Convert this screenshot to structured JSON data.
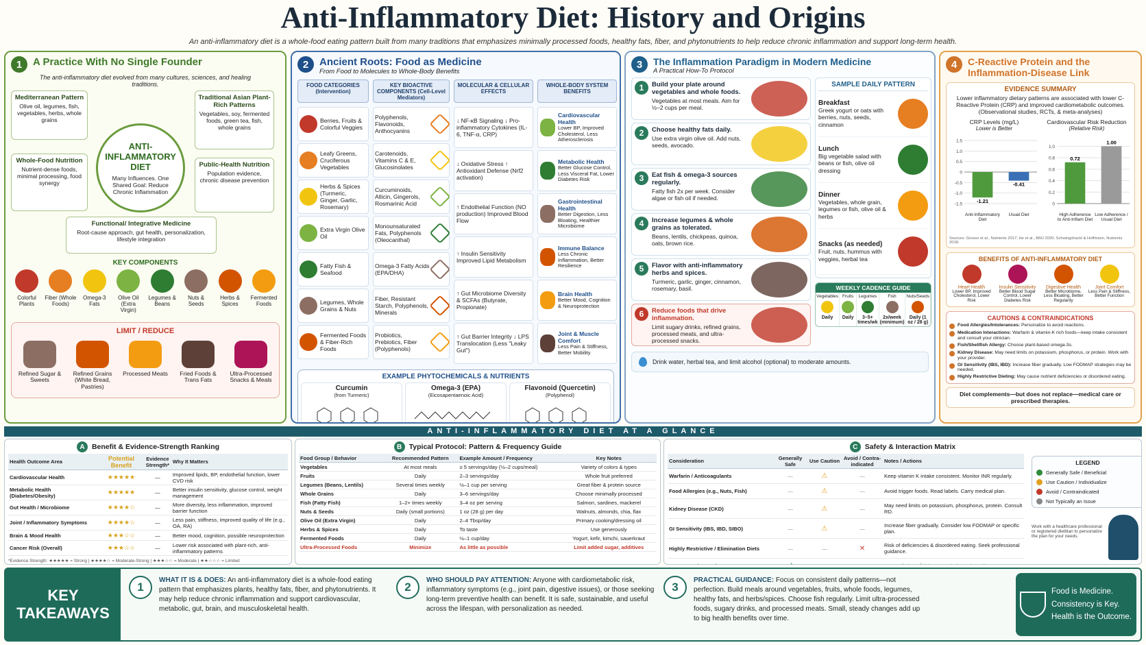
{
  "header": {
    "title": "Anti-Inflammatory Diet: History and Origins",
    "subtitle": "An anti-inflammatory diet is a whole-food eating pattern built from many traditions that emphasizes minimally processed foods, healthy fats, fiber, and phytonutrients to help reduce chronic inflammation and support long-term health."
  },
  "panel1": {
    "number": "1",
    "title": "A Practice With No Single Founder",
    "intro": "The anti-inflammatory diet evolved from many cultures, sciences, and healing traditions.",
    "center": {
      "label": "ANTI-INFLAMMATORY DIET",
      "text": "Many Influences. One Shared Goal: Reduce Chronic Inflammation"
    },
    "origins": [
      {
        "title": "Mediterranean Pattern",
        "text": "Olive oil, legumes, fish, vegetables, herbs, whole grains"
      },
      {
        "title": "Traditional Asian Plant-Rich Patterns",
        "text": "Vegetables, soy, fermented foods, green tea, fish, whole grains"
      },
      {
        "title": "Whole-Food Nutrition",
        "text": "Nutrient-dense foods, minimal processing, food synergy"
      },
      {
        "title": "Public-Health Nutrition",
        "text": "Population evidence, chronic disease prevention"
      },
      {
        "title": "Functional/ Integrative Medicine",
        "text": "Root-cause approach, gut health, personalization, lifestyle integration"
      }
    ],
    "key_components": {
      "title": "KEY COMPONENTS",
      "items": [
        "Colorful Plants",
        "Fiber (Whole Foods)",
        "Omega-3 Fats",
        "Olive Oil (Extra Virgin)",
        "Legumes & Beans",
        "Nuts & Seeds",
        "Herbs & Spices",
        "Fermented Foods"
      ]
    },
    "limit": {
      "title": "LIMIT / REDUCE",
      "items": [
        "Refined Sugar & Sweets",
        "Refined Grains (White Bread, Pastries)",
        "Processed Meats",
        "Fried Foods & Trans Fats",
        "Ultra-Processed Snacks & Meals"
      ]
    }
  },
  "panel2": {
    "number": "2",
    "title": "Ancient Roots: Food as Medicine",
    "subtitle": "From Food to Molecules to Whole-Body Benefits",
    "columns": [
      "FOOD CATEGORIES (Intervention)",
      "KEY BIOACTIVE COMPONENTS (Cell-Level Mediators)",
      "MOLECULAR & CELLULAR EFFECTS",
      "WHOLE-BODY SYSTEM BENEFITS"
    ],
    "foods": [
      "Berries, Fruits & Colorful Veggies",
      "Leafy Greens, Cruciferous Vegetables",
      "Herbs & Spices (Turmeric, Ginger, Garlic, Rosemary)",
      "Extra Virgin Olive Oil",
      "Fatty Fish & Seafood",
      "Legumes, Whole Grains & Nuts",
      "Fermented Foods & Fiber-Rich Foods"
    ],
    "components": [
      "Polyphenols, Flavonoids, Anthocyanins",
      "Carotenoids, Vitamins C & E, Glucosinolates",
      "Curcuminoids, Allicin, Gingerols, Rosmarinic Acid",
      "Monounsaturated Fats, Polyphenols (Oleocanthal)",
      "Omega-3 Fatty Acids (EPA/DHA)",
      "Fiber, Resistant Starch, Polyphenols, Minerals",
      "Probiotics, Prebiotics, Fiber (Polyphenols)"
    ],
    "effects": [
      "↓ NF-κB Signaling ↓ Pro-inflammatory Cytokines (IL-6, TNF-α, CRP)",
      "↓ Oxidative Stress ↑ Antioxidant Defense (Nrf2 activation)",
      "↑ Endothelial Function (NO production) Improved Blood Flow",
      "↑ Insulin Sensitivity Improved Lipid Metabolism",
      "↑ Gut Microbiome Diversity & SCFAs (Butyrate, Propionate)",
      "↑ Gut Barrier Integrity ↓ LPS Translocation (Less \"Leaky Gut\")"
    ],
    "benefits": [
      {
        "title": "Cardiovascular Health",
        "text": "Lower BP, Improved Cholesterol, Less Atherosclerosis"
      },
      {
        "title": "Metabolic Health",
        "text": "Better Glucose Control, Less Visceral Fat, Lower Diabetes Risk"
      },
      {
        "title": "Gastrointestinal Health",
        "text": "Better Digestion, Less Bloating, Healthier Microbiome"
      },
      {
        "title": "Immune Balance",
        "text": "Less Chronic Inflammation, Better Resilience"
      },
      {
        "title": "Brain Health",
        "text": "Better Mood, Cognition & Neuroprotection"
      },
      {
        "title": "Joint & Muscle Comfort",
        "text": "Less Pain & Stiffness, Better Mobility"
      }
    ],
    "phytochemicals": {
      "title": "EXAMPLE PHYTOCHEMICALS & NUTRIENTS",
      "items": [
        {
          "name": "Curcumin",
          "source": "(from Turmeric)"
        },
        {
          "name": "Omega-3 (EPA)",
          "source": "(Eicosapentaenoic Acid)"
        },
        {
          "name": "Flavonoid (Quercetin)",
          "source": "(Polyphenol)"
        }
      ]
    }
  },
  "panel3": {
    "number": "3",
    "title": "The Inflammation Paradigm in Modern Medicine",
    "subtitle": "A Practical How-To Protocol",
    "steps": [
      {
        "num": "1",
        "title": "Build your plate around vegetables and whole foods.",
        "text": "Vegetables at most meals. Aim for ½–2 cups per meal."
      },
      {
        "num": "2",
        "title": "Choose healthy fats daily.",
        "text": "Use extra virgin olive oil. Add nuts, seeds, avocado."
      },
      {
        "num": "3",
        "title": "Eat fish & omega-3 sources regularly.",
        "text": "Fatty fish 2x per week. Consider algae or fish oil if needed."
      },
      {
        "num": "4",
        "title": "Increase legumes & whole grains as tolerated.",
        "text": "Beans, lentils, chickpeas, quinoa, oats, brown rice."
      },
      {
        "num": "5",
        "title": "Flavor with anti-inflammatory herbs and spices.",
        "text": "Turmeric, garlic, ginger, cinnamon, rosemary, basil."
      },
      {
        "num": "6",
        "title": "Reduce foods that drive inflammation.",
        "text": "Limit sugary drinks, refined grains, processed meats, and ultra-processed snacks."
      }
    ],
    "sample": {
      "title": "SAMPLE DAILY PATTERN",
      "meals": [
        {
          "meal": "Breakfast",
          "text": "Greek yogurt or oats with berries, nuts, seeds, cinnamon"
        },
        {
          "meal": "Lunch",
          "text": "Big vegetable salad with beans or fish, olive oil dressing"
        },
        {
          "meal": "Dinner",
          "text": "Vegetables, whole grain, legumes or fish, olive oil & herbs"
        },
        {
          "meal": "Snacks (as needed)",
          "text": "Fruit, nuts, hummus with veggies, herbal tea"
        }
      ]
    },
    "weekly": {
      "title": "WEEKLY CADENCE GUIDE",
      "items": [
        {
          "food": "Vegetables",
          "freq": "Daily"
        },
        {
          "food": "Fruits",
          "freq": "Daily"
        },
        {
          "food": "Legumes",
          "freq": "3–5+ times/wk"
        },
        {
          "food": "Fish",
          "freq": "2x/week (minimum)"
        },
        {
          "food": "Nuts/Seeds",
          "freq": "Daily (1 oz / 28 g)"
        }
      ]
    },
    "footer": "Drink water, herbal tea, and limit alcohol (optional) to moderate amounts."
  },
  "panel4": {
    "number": "4",
    "title": "C-Reactive Protein and the Inflammation-Disease Link",
    "evidence": {
      "title": "EVIDENCE SUMMARY",
      "text": "Lower inflammatory dietary patterns are associated with lower C-Reactive Protein (CRP) and improved cardiometabolic outcomes. (Observational studies, RCTs, & meta-analyses)"
    },
    "crp_chart": {
      "type": "bar",
      "title": "CRP Levels (mg/L)",
      "subtitle": "Lower is Better",
      "categories": [
        "Anti-Inflammatory Diet",
        "Usual Diet"
      ],
      "values": [
        -1.21,
        -0.41
      ],
      "colors": [
        "#4f9a3c",
        "#3a6fb5"
      ],
      "ylim": [
        -1.5,
        1.5
      ],
      "yticks": [
        1.5,
        {
          "value": 1,
          "label": "1.0"
        },
        0.5,
        0,
        -0.5,
        {
          "value": -1,
          "label": "-1.0"
        },
        -1.5
      ]
    },
    "risk_chart": {
      "type": "bar",
      "title": "Cardiovascular Risk Reduction",
      "subtitle": "(Relative Risk)",
      "categories": [
        "High Adherence to Anti-Inflam Diet",
        "Low Adherence / Usual Diet"
      ],
      "values": [
        0.72,
        1.0
      ],
      "value_labels": [
        "0.72",
        "1.00"
      ],
      "colors": [
        "#4f9a3c",
        "#9a9a9a"
      ],
      "ylim": [
        0,
        1.1
      ],
      "yticks": [
        0,
        0.2,
        0.4,
        0.6,
        0.8,
        {
          "value": 1,
          "label": "1.0"
        }
      ]
    },
    "sources": "Sources: Grosso et al., Nutrients 2017; He et al., BMJ 2020; Schwingshackl & Hoffmann, Nutrients 2018.",
    "benefits": {
      "title": "BENEFITS OF ANTI-INFLAMMATORY DIET",
      "items": [
        {
          "title": "Heart Health",
          "text": "Lower BP, Improved Cholesterol, Lower Risk"
        },
        {
          "title": "Insulin Sensitivity",
          "text": "Better Blood Sugar Control, Lower Diabetes Risk"
        },
        {
          "title": "Digestive Health",
          "text": "Better Microbiome, Less Bloating, Better Regularity"
        },
        {
          "title": "Joint Comfort",
          "text": "Less Pain & Stiffness, Better Function"
        }
      ]
    },
    "cautions": {
      "title": "CAUTIONS & CONTRAINDICATIONS",
      "items": [
        {
          "label": "Food Allergies/Intolerances:",
          "text": "Personalize to avoid reactions."
        },
        {
          "label": "Medication Interactions:",
          "text": "Warfarin & vitamin-K rich foods—keep intake consistent and consult your clinician."
        },
        {
          "label": "Fish/Shellfish Allergy:",
          "text": "Choose plant-based omega-3s."
        },
        {
          "label": "Kidney Disease:",
          "text": "May need limits on potassium, phosphorus, or protein. Work with your provider."
        },
        {
          "label": "GI Sensitivity (IBS, IBD):",
          "text": "Increase fiber gradually. Low FODMAP strategies may be needed."
        },
        {
          "label": "Highly Restrictive Dieting:",
          "text": "May cause nutrient deficiencies or disordered eating."
        }
      ],
      "note": "Diet complements—but does not replace—medical care or prescribed therapies."
    }
  },
  "glance": {
    "title": "ANTI-INFLAMMATORY DIET AT A GLANCE",
    "table_a": {
      "letter": "A",
      "title": "Benefit & Evidence-Strength Ranking",
      "headers": [
        "Health Outcome Area",
        "Potential Benefit",
        "Evidence Strength*",
        "Why It Matters"
      ],
      "rows": [
        [
          "Cardiovascular Health",
          "★★★★★",
          "—",
          "Improved lipids, BP, endothelial function, lower CVD risk"
        ],
        [
          "Metabolic Health (Diabetes/Obesity)",
          "★★★★★",
          "—",
          "Better insulin sensitivity, glucose control, weight management"
        ],
        [
          "Gut Health / Microbiome",
          "★★★★☆",
          "—",
          "More diversity, less inflammation, improved barrier function"
        ],
        [
          "Joint / Inflammatory Symptoms",
          "★★★★☆",
          "—",
          "Less pain, stiffness, improved quality of life (e.g., OA, RA)"
        ],
        [
          "Brain & Mood Health",
          "★★★☆☆",
          "—",
          "Better mood, cognition, possible neuroprotection"
        ],
        [
          "Cancer Risk (Overall)",
          "★★★☆☆",
          "—",
          "Lower risk associated with plant-rich, anti-inflammatory patterns"
        ]
      ],
      "footnote": "*Evidence Strength: ★★★★★ = Strong | ★★★★☆ = Moderate-Strong | ★★★☆☆ = Moderate | ★★☆☆☆ = Limited"
    },
    "table_b": {
      "letter": "B",
      "title": "Typical Protocol: Pattern & Frequency Guide",
      "headers": [
        "Food Group / Behavior",
        "Recommended Pattern",
        "Example Amount / Frequency",
        "Key Notes"
      ],
      "rows": [
        [
          "Vegetables",
          "At most meals",
          "≥ 5 servings/day (½–2 cups/meal)",
          "Variety of colors & types"
        ],
        [
          "Fruits",
          "Daily",
          "2–3 servings/day",
          "Whole fruit preferred"
        ],
        [
          "Legumes (Beans, Lentils)",
          "Several times weekly",
          "½–1 cup per serving",
          "Great fiber & protein source"
        ],
        [
          "Whole Grains",
          "Daily",
          "3–6 servings/day",
          "Choose minimally processed"
        ],
        [
          "Fish (Fatty Fish)",
          "1–2+ times weekly",
          "3–4 oz per serving",
          "Salmon, sardines, mackerel"
        ],
        [
          "Nuts & Seeds",
          "Daily (small portions)",
          "1 oz (28 g) per day",
          "Walnuts, almonds, chia, flax"
        ],
        [
          "Olive Oil (Extra Virgin)",
          "Daily",
          "2–4 Tbsp/day",
          "Primary cooking/dressing oil"
        ],
        [
          "Herbs & Spices",
          "Daily",
          "To taste",
          "Use generously"
        ],
        [
          "Fermented Foods",
          "Daily",
          "½–1 cup/day",
          "Yogurt, kefir, kimchi, sauerkraut"
        ],
        [
          "Ultra-Processed Foods",
          "Minimize",
          "As little as possible",
          "Limit added sugar, additives"
        ]
      ]
    },
    "table_c": {
      "letter": "C",
      "title": "Safety & Interaction Matrix",
      "headers": [
        "Consideration",
        "Generally Safe",
        "Use Caution",
        "Avoid / Contra-indicated",
        "Notes / Actions"
      ],
      "rows": [
        [
          "Warfarin / Anticoagulants",
          "—",
          "⚠",
          "—",
          "Keep vitamin K intake consistent. Monitor INR regularly."
        ],
        [
          "Food Allergies (e.g., Nuts, Fish)",
          "—",
          "⚠",
          "—",
          "Avoid trigger foods. Read labels. Carry medical plan."
        ],
        [
          "Kidney Disease (CKD)",
          "—",
          "⚠",
          "—",
          "May need limits on potassium, phosphorus, protein. Consult RD."
        ],
        [
          "GI Sensitivity (IBS, IBD, SIBO)",
          "—",
          "⚠",
          "—",
          "Increase fiber gradually. Consider low FODMAP or specific plan."
        ],
        [
          "Highly Restrictive / Elimination Diets",
          "—",
          "—",
          "✕",
          "Risk of deficiencies & disordered eating. Seek professional guidance."
        ],
        [
          "Pregnancy / Lactation",
          "✔",
          "—",
          "—",
          "Generally beneficial. Ensure balanced nutrition."
        ]
      ],
      "legend": {
        "title": "LEGEND",
        "items": [
          "Generally Safe / Beneficial",
          "Use Caution / Individualize",
          "Avoid / Contraindicated",
          "Not Typically an Issue"
        ]
      },
      "note": "Work with a healthcare professional or registered dietitian to personalize the plan for your needs."
    }
  },
  "takeaways": {
    "title": "KEY TAKEAWAYS",
    "items": [
      {
        "num": "1",
        "label": "WHAT IT IS & DOES:",
        "text": "An anti-inflammatory diet is a whole-food eating pattern that emphasizes plants, healthy fats, fiber, and phytonutrients. It may help reduce chronic inflammation and support cardiovascular, metabolic, gut, brain, and musculoskeletal health."
      },
      {
        "num": "2",
        "label": "WHO SHOULD PAY ATTENTION:",
        "text": "Anyone with cardiometabolic risk, inflammatory symptoms (e.g., joint pain, digestive issues), or those seeking long-term preventive health can benefit. It is safe, sustainable, and useful across the lifespan, with personalization as needed."
      },
      {
        "num": "3",
        "label": "PRACTICAL GUIDANCE:",
        "text": "Focus on consistent daily patterns—not perfection. Build meals around vegetables, fruits, whole foods, legumes, healthy fats, and herbs/spices. Choose fish regularly. Limit ultra-processed foods, sugary drinks, and processed meats. Small, steady changes add up to big health benefits over time."
      }
    ],
    "motto": [
      "Food is Medicine.",
      "Consistency is Key.",
      "Health is the Outcome."
    ]
  }
}
